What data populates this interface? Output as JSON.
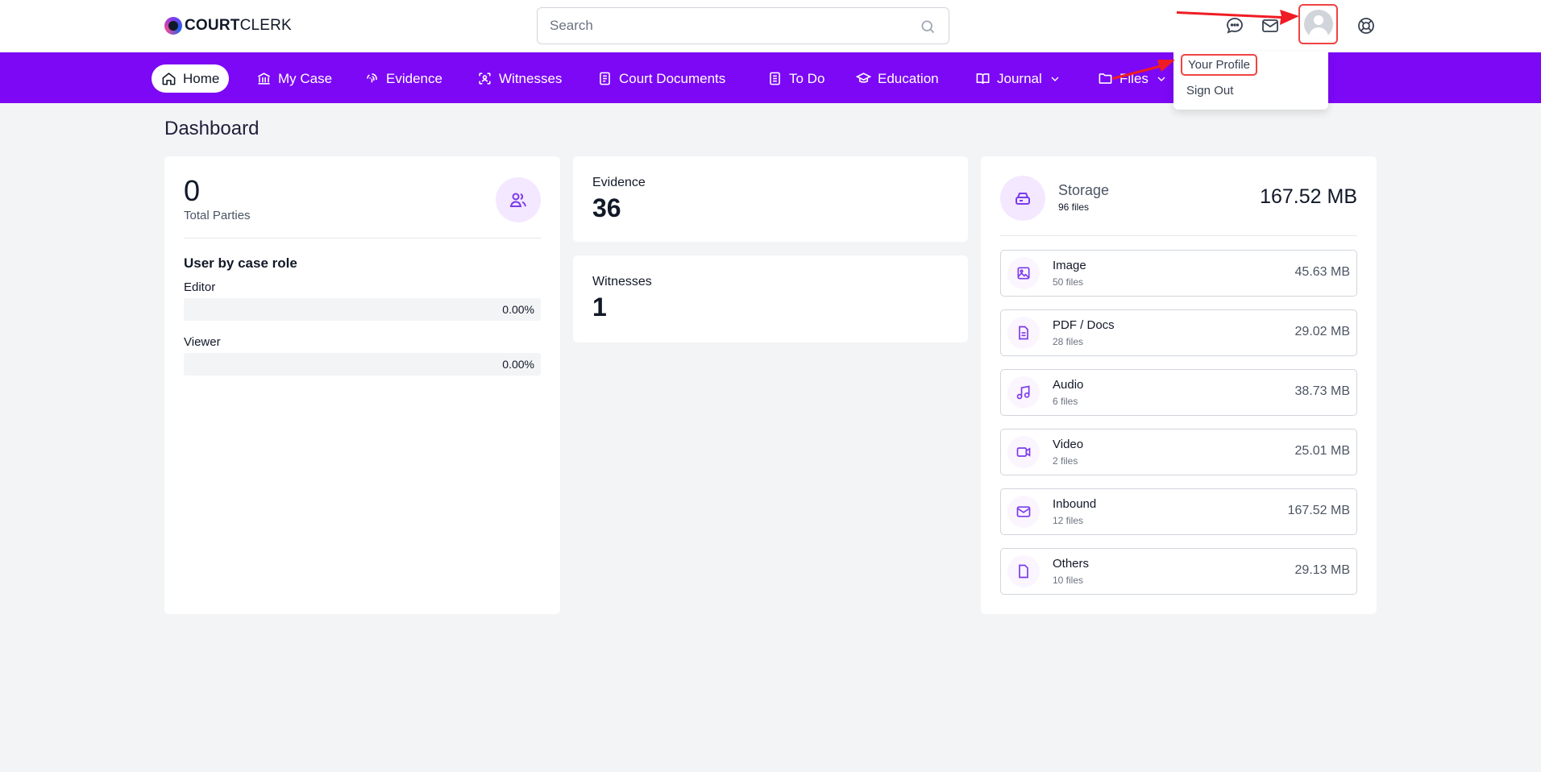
{
  "brand": {
    "name_bold": "COURT",
    "name_light": "CLERK"
  },
  "search": {
    "placeholder": "Search"
  },
  "nav": {
    "items": [
      {
        "label": "Home",
        "icon": "home-icon",
        "active": true
      },
      {
        "label": "My Case",
        "icon": "bank-icon"
      },
      {
        "label": "Evidence",
        "icon": "fingerprint-icon"
      },
      {
        "label": "Witnesses",
        "icon": "user-scan-icon"
      },
      {
        "label": "Court Documents",
        "icon": "document-icon"
      },
      {
        "label": "To Do",
        "icon": "checklist-icon"
      },
      {
        "label": "Education",
        "icon": "graduation-cap-icon"
      },
      {
        "label": "Journal",
        "icon": "book-icon"
      },
      {
        "label": "Files",
        "icon": "folder-icon"
      }
    ]
  },
  "user_menu": {
    "profile": "Your Profile",
    "sign_out": "Sign Out"
  },
  "dashboard": {
    "title": "Dashboard",
    "parties": {
      "total": "0",
      "label": "Total Parties",
      "role_title": "User by case role",
      "roles": [
        {
          "label": "Editor",
          "percent": "0.00%"
        },
        {
          "label": "Viewer",
          "percent": "0.00%"
        }
      ]
    },
    "evidence": {
      "label": "Evidence",
      "value": "36"
    },
    "witnesses": {
      "label": "Witnesses",
      "value": "1"
    },
    "storage": {
      "title": "Storage",
      "files": "96 files",
      "total": "167.52 MB",
      "rows": [
        {
          "name": "Image",
          "count": "50 files",
          "size": "45.63 MB",
          "icon": "image-icon"
        },
        {
          "name": "PDF / Docs",
          "count": "28 files",
          "size": "29.02 MB",
          "icon": "document-icon"
        },
        {
          "name": "Audio",
          "count": "6 files",
          "size": "38.73 MB",
          "icon": "music-icon"
        },
        {
          "name": "Video",
          "count": "2 files",
          "size": "25.01 MB",
          "icon": "video-icon"
        },
        {
          "name": "Inbound",
          "count": "12 files",
          "size": "167.52 MB",
          "icon": "mail-icon"
        },
        {
          "name": "Others",
          "count": "10 files",
          "size": "29.13 MB",
          "icon": "file-icon"
        }
      ]
    }
  },
  "colors": {
    "nav": "#7c08f5",
    "accent": "#7c3aed",
    "annotation": "#ef4444"
  }
}
